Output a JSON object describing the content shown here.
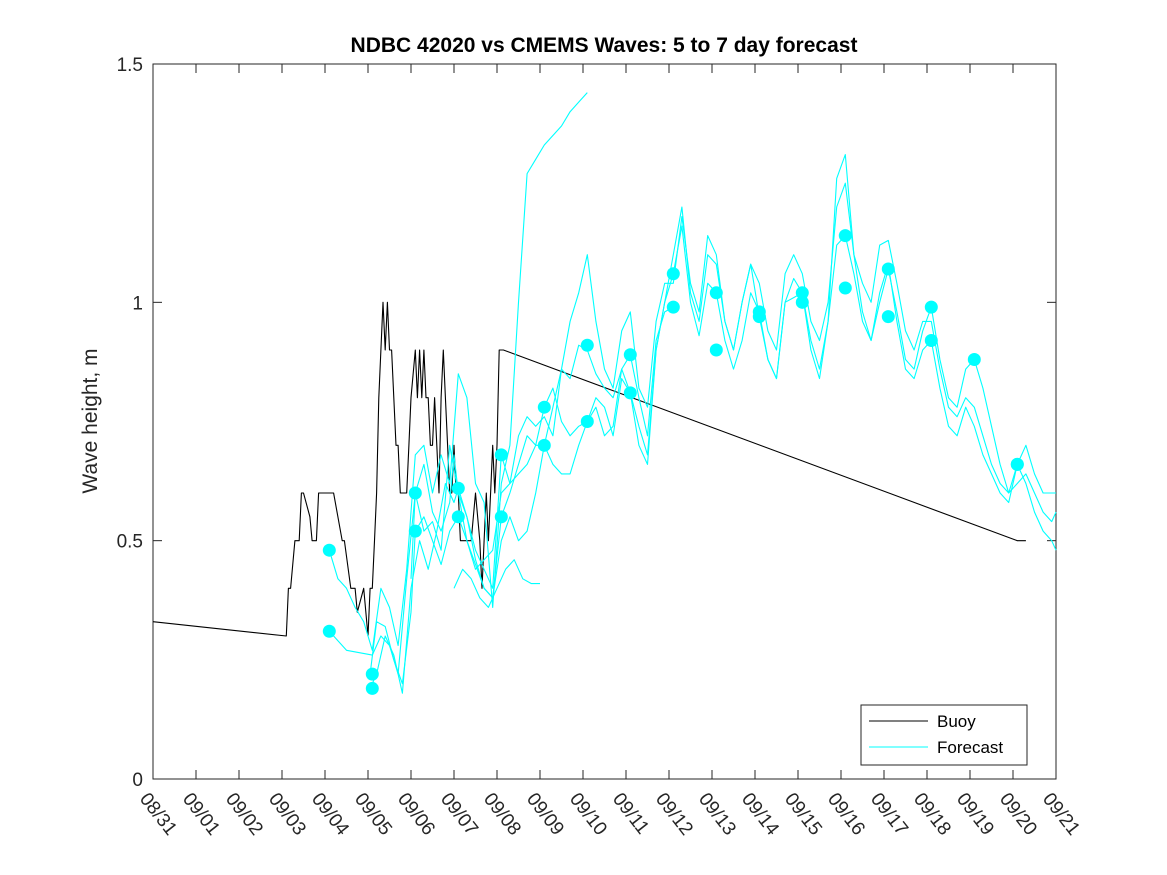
{
  "chart_data": {
    "type": "line",
    "title": "NDBC 42020 vs CMEMS Waves: 5 to 7 day forecast",
    "xlabel": "",
    "ylabel": "Wave height, m",
    "xlim": [
      0,
      21
    ],
    "ylim": [
      0,
      1.5
    ],
    "yticks": [
      0,
      0.5,
      1,
      1.5
    ],
    "ytick_labels": [
      "0",
      "0.5",
      "1",
      "1.5"
    ],
    "xtick_labels": [
      "08/31",
      "09/01",
      "09/02",
      "09/03",
      "09/04",
      "09/05",
      "09/06",
      "09/07",
      "09/08",
      "09/09",
      "09/10",
      "09/11",
      "09/12",
      "09/13",
      "09/14",
      "09/15",
      "09/16",
      "09/17",
      "09/18",
      "09/19",
      "09/20",
      "09/21"
    ],
    "legend": {
      "location": "bottom-right",
      "entries": [
        {
          "label": "Buoy",
          "color": "#000000"
        },
        {
          "label": "Forecast",
          "color": "#00ffff"
        }
      ]
    },
    "colors": {
      "buoy": "#000000",
      "forecast": "#00ffff"
    },
    "series": [
      {
        "name": "Buoy",
        "color": "#000000",
        "x": [
          0,
          3.1,
          3.15,
          3.2,
          3.3,
          3.4,
          3.45,
          3.5,
          3.65,
          3.7,
          3.8,
          3.85,
          4.0,
          4.1,
          4.2,
          4.4,
          4.45,
          4.6,
          4.7,
          4.75,
          4.9,
          5.0,
          5.05,
          5.1,
          5.15,
          5.2,
          5.25,
          5.3,
          5.35,
          5.4,
          5.45,
          5.5,
          5.55,
          5.6,
          5.65,
          5.7,
          5.75,
          5.8,
          5.85,
          5.9,
          5.95,
          6.0,
          6.1,
          6.15,
          6.2,
          6.25,
          6.3,
          6.35,
          6.4,
          6.45,
          6.5,
          6.55,
          6.6,
          6.65,
          6.7,
          6.75,
          6.8,
          6.85,
          6.9,
          6.95,
          7.0,
          7.05,
          7.1,
          7.15,
          7.2,
          7.3,
          7.4,
          7.5,
          7.6,
          7.65,
          7.7,
          7.75,
          7.8,
          7.85,
          7.9,
          7.95,
          8.0,
          8.05,
          8.1,
          8.15,
          20.1,
          20.3
        ],
        "y": [
          0.33,
          0.3,
          0.4,
          0.4,
          0.5,
          0.5,
          0.6,
          0.6,
          0.55,
          0.5,
          0.5,
          0.6,
          0.6,
          0.6,
          0.6,
          0.5,
          0.5,
          0.4,
          0.4,
          0.35,
          0.4,
          0.3,
          0.4,
          0.4,
          0.5,
          0.6,
          0.8,
          0.9,
          1.0,
          0.9,
          1.0,
          0.9,
          0.9,
          0.8,
          0.7,
          0.7,
          0.6,
          0.6,
          0.6,
          0.6,
          0.7,
          0.8,
          0.9,
          0.8,
          0.9,
          0.8,
          0.9,
          0.8,
          0.8,
          0.7,
          0.7,
          0.8,
          0.7,
          0.6,
          0.8,
          0.9,
          0.8,
          0.7,
          0.6,
          0.6,
          0.7,
          0.6,
          0.6,
          0.5,
          0.5,
          0.5,
          0.5,
          0.6,
          0.5,
          0.4,
          0.5,
          0.6,
          0.5,
          0.6,
          0.7,
          0.6,
          0.7,
          0.9,
          0.9,
          0.9,
          0.5,
          0.5
        ]
      },
      {
        "name": "Forecast 1",
        "color": "#00ffff",
        "x": [
          4.1,
          4.3,
          4.5,
          4.7,
          4.9,
          5.1,
          5.3,
          5.5,
          5.7,
          5.9,
          6.1,
          6.3,
          6.5,
          6.7,
          6.9,
          7.1,
          7.3,
          7.5,
          7.7,
          7.9,
          8.1,
          8.3,
          8.5,
          8.7,
          8.9,
          9.1,
          9.3,
          9.5,
          9.7,
          9.9,
          10.1
        ],
        "y": [
          0.48,
          0.42,
          0.4,
          0.36,
          0.33,
          0.27,
          0.4,
          0.36,
          0.28,
          0.44,
          0.68,
          0.7,
          0.6,
          0.68,
          0.62,
          0.85,
          0.8,
          0.62,
          0.58,
          0.36,
          0.62,
          0.7,
          1.0,
          1.27,
          1.3,
          1.33,
          1.35,
          1.37,
          1.4,
          1.42,
          1.44
        ]
      },
      {
        "name": "Forecast 2",
        "color": "#00ffff",
        "x": [
          4.1,
          4.5,
          5.1,
          5.3,
          5.5,
          5.7,
          5.9,
          6.1,
          6.3,
          6.5,
          6.7,
          6.9,
          7.1,
          7.3,
          7.5,
          7.7,
          7.9,
          8.1,
          8.3,
          8.5,
          8.7,
          8.9,
          9.1,
          9.3,
          9.5,
          9.7,
          9.9,
          10.1,
          10.3,
          10.5,
          10.7,
          10.9,
          11.1,
          11.3,
          11.5,
          11.7,
          11.9,
          12.1
        ],
        "y": [
          0.31,
          0.27,
          0.26,
          0.3,
          0.28,
          0.22,
          0.42,
          0.6,
          0.52,
          0.54,
          0.48,
          0.7,
          0.6,
          0.55,
          0.46,
          0.4,
          0.38,
          0.5,
          0.55,
          0.5,
          0.52,
          0.6,
          0.7,
          0.78,
          0.86,
          0.84,
          0.91,
          0.9,
          0.85,
          0.82,
          0.8,
          0.86,
          0.89,
          0.8,
          0.72,
          0.92,
          0.98,
          0.99
        ]
      },
      {
        "name": "Forecast 3",
        "color": "#00ffff",
        "x": [
          5.05,
          5.2,
          5.4,
          5.6,
          5.8,
          6.0,
          6.1,
          6.3,
          6.5,
          6.7,
          6.9,
          7.1,
          7.3,
          7.5,
          7.7,
          7.9,
          8.1,
          8.3,
          8.5,
          8.7,
          8.9,
          9.1,
          9.3,
          9.5,
          9.7,
          9.9,
          10.1,
          10.3,
          10.5,
          10.7,
          10.9,
          11.1,
          11.3,
          11.5,
          11.7,
          11.9,
          12.1,
          12.3,
          12.5,
          12.7,
          12.9,
          13.1,
          13.3,
          13.5,
          13.7,
          13.9,
          14.1,
          14.3,
          14.5,
          14.7,
          14.9,
          15.1,
          15.3,
          15.5,
          15.7,
          15.9,
          16.1,
          16.3,
          16.5,
          16.7,
          16.9,
          17.1,
          17.3,
          17.5,
          17.7,
          17.9,
          18.1,
          18.3,
          18.5,
          18.7,
          18.9,
          19.1,
          19.3,
          19.5,
          19.7,
          19.9,
          20.1,
          20.3,
          20.5,
          20.7,
          20.9,
          21.0
        ],
        "y": [
          0.22,
          0.33,
          0.32,
          0.25,
          0.2,
          0.35,
          0.52,
          0.55,
          0.5,
          0.45,
          0.52,
          0.55,
          0.5,
          0.45,
          0.4,
          0.38,
          0.55,
          0.6,
          0.66,
          0.72,
          0.7,
          0.78,
          0.82,
          0.75,
          0.72,
          0.74,
          0.75,
          0.8,
          0.78,
          0.72,
          0.84,
          0.81,
          0.7,
          0.66,
          0.9,
          1.0,
          1.06,
          1.16,
          1.0,
          0.93,
          1.04,
          1.02,
          0.92,
          0.86,
          0.92,
          1.02,
          0.98,
          0.88,
          0.84,
          1.0,
          1.01,
          1.02,
          0.92,
          0.86,
          0.96,
          1.12,
          1.14,
          1.06,
          0.96,
          0.92,
          1.0,
          1.07,
          0.98,
          0.88,
          0.86,
          0.94,
          0.99,
          0.88,
          0.8,
          0.78,
          0.86,
          0.88,
          0.82,
          0.74,
          0.66,
          0.6,
          0.66,
          0.62,
          0.56,
          0.52,
          0.5,
          0.48
        ]
      },
      {
        "name": "Forecast 4",
        "color": "#00ffff",
        "x": [
          5.05,
          5.2,
          5.4,
          5.6,
          5.8,
          6.0,
          6.2,
          6.4,
          6.6,
          6.8,
          7.0,
          7.1,
          7.3,
          7.5,
          7.7,
          7.9,
          8.1,
          8.3,
          8.5,
          8.7,
          8.9,
          9.1,
          9.3,
          9.5,
          9.7,
          9.9,
          10.1,
          10.3,
          10.5,
          10.7,
          10.9,
          11.1,
          11.3,
          11.5,
          11.7,
          11.9,
          12.1,
          12.3,
          12.5,
          12.7,
          12.9,
          13.1,
          13.3,
          13.5,
          13.7,
          13.9,
          14.1,
          14.3,
          14.5,
          14.7,
          14.9,
          15.1,
          15.3,
          15.5,
          15.7,
          15.9,
          16.1,
          16.3,
          16.5,
          16.7,
          16.9,
          17.1,
          17.3,
          17.5,
          17.7,
          17.9,
          18.1,
          18.3,
          18.5,
          18.7,
          18.9,
          19.1,
          19.3,
          19.5,
          19.7,
          19.9,
          20.1,
          20.3,
          20.5,
          20.7,
          20.9,
          21.0
        ],
        "y": [
          0.19,
          0.22,
          0.3,
          0.26,
          0.18,
          0.4,
          0.5,
          0.44,
          0.52,
          0.62,
          0.58,
          0.61,
          0.55,
          0.48,
          0.44,
          0.4,
          0.68,
          0.62,
          0.64,
          0.66,
          0.7,
          0.7,
          0.66,
          0.64,
          0.64,
          0.7,
          0.75,
          0.78,
          0.72,
          0.74,
          0.86,
          0.81,
          0.74,
          0.68,
          0.9,
          1.0,
          1.1,
          1.2,
          1.02,
          0.96,
          1.1,
          1.08,
          0.96,
          0.9,
          1.0,
          1.08,
          0.97,
          0.88,
          0.84,
          1.0,
          1.05,
          1.02,
          0.9,
          0.84,
          0.96,
          1.26,
          1.31,
          1.1,
          0.98,
          0.92,
          1.02,
          1.08,
          0.96,
          0.86,
          0.84,
          0.9,
          0.92,
          0.82,
          0.74,
          0.72,
          0.78,
          0.74,
          0.68,
          0.64,
          0.6,
          0.58,
          0.66,
          0.7,
          0.64,
          0.6,
          0.6,
          0.6
        ]
      },
      {
        "name": "Forecast 5",
        "color": "#00ffff",
        "x": [
          6.0,
          6.1,
          6.3,
          6.5,
          6.7,
          6.9,
          7.0,
          7.1,
          7.3,
          7.5,
          7.7,
          7.9,
          8.1,
          8.3,
          8.5,
          8.7,
          8.9,
          9.1,
          9.3,
          9.5,
          9.7,
          9.9,
          10.1,
          10.3,
          10.5,
          10.7,
          10.9,
          11.1,
          11.3,
          11.5,
          11.7,
          11.9,
          12.1,
          12.3,
          12.5,
          12.7,
          12.9,
          13.1,
          13.3,
          13.5,
          13.7,
          13.9,
          14.1,
          14.3,
          14.5,
          14.7,
          14.9,
          15.1,
          15.3,
          15.5,
          15.7,
          15.9,
          16.1,
          16.3,
          16.5,
          16.7,
          16.9,
          17.1,
          17.3,
          17.5,
          17.7,
          17.9,
          18.1,
          18.3,
          18.5,
          18.7,
          18.9,
          19.1,
          19.3,
          19.5,
          19.7,
          19.9,
          20.1,
          20.3,
          20.5,
          20.7,
          20.9,
          21.0
        ],
        "y": [
          0.42,
          0.6,
          0.66,
          0.56,
          0.52,
          0.58,
          0.68,
          0.6,
          0.5,
          0.44,
          0.46,
          0.48,
          0.6,
          0.62,
          0.72,
          0.76,
          0.74,
          0.76,
          0.72,
          0.86,
          0.96,
          1.02,
          1.1,
          0.96,
          0.86,
          0.82,
          0.94,
          0.98,
          0.82,
          0.78,
          0.96,
          1.04,
          1.04,
          1.18,
          1.04,
          0.98,
          1.14,
          1.1,
          0.96,
          0.9,
          1.0,
          1.08,
          1.04,
          0.94,
          0.9,
          1.06,
          1.1,
          1.06,
          0.96,
          0.92,
          1.0,
          1.2,
          1.25,
          1.1,
          1.04,
          1.0,
          1.12,
          1.13,
          1.04,
          0.94,
          0.9,
          0.96,
          0.96,
          0.86,
          0.78,
          0.76,
          0.8,
          0.78,
          0.72,
          0.66,
          0.62,
          0.6,
          0.62,
          0.64,
          0.6,
          0.56,
          0.54,
          0.56
        ]
      },
      {
        "name": "Forecast 6",
        "color": "#00ffff",
        "x": [
          7.0,
          7.1,
          7.2,
          7.4,
          7.6,
          7.8,
          8.0,
          8.2,
          8.4,
          8.6,
          8.8,
          9.0
        ],
        "y": [
          0.4,
          0.42,
          0.44,
          0.42,
          0.38,
          0.36,
          0.4,
          0.44,
          0.46,
          0.42,
          0.41,
          0.41
        ]
      }
    ],
    "markers": {
      "name": "Forecast start points",
      "color": "#00ffff",
      "points": [
        [
          4.1,
          0.48
        ],
        [
          4.1,
          0.31
        ],
        [
          5.1,
          0.22
        ],
        [
          5.1,
          0.19
        ],
        [
          6.1,
          0.6
        ],
        [
          6.1,
          0.52
        ],
        [
          7.1,
          0.61
        ],
        [
          7.1,
          0.55
        ],
        [
          8.1,
          0.68
        ],
        [
          8.1,
          0.55
        ],
        [
          9.1,
          0.78
        ],
        [
          9.1,
          0.7
        ],
        [
          10.1,
          0.91
        ],
        [
          10.1,
          0.75
        ],
        [
          11.1,
          0.89
        ],
        [
          11.1,
          0.81
        ],
        [
          12.1,
          1.06
        ],
        [
          12.1,
          0.99
        ],
        [
          13.1,
          1.02
        ],
        [
          13.1,
          0.9
        ],
        [
          14.1,
          0.98
        ],
        [
          14.1,
          0.97
        ],
        [
          15.1,
          1.02
        ],
        [
          15.1,
          1.0
        ],
        [
          16.1,
          1.14
        ],
        [
          16.1,
          1.03
        ],
        [
          17.1,
          1.07
        ],
        [
          17.1,
          0.97
        ],
        [
          18.1,
          0.99
        ],
        [
          18.1,
          0.92
        ],
        [
          19.1,
          0.88
        ],
        [
          20.1,
          0.66
        ],
        [
          20.1,
          0.66
        ]
      ]
    }
  }
}
